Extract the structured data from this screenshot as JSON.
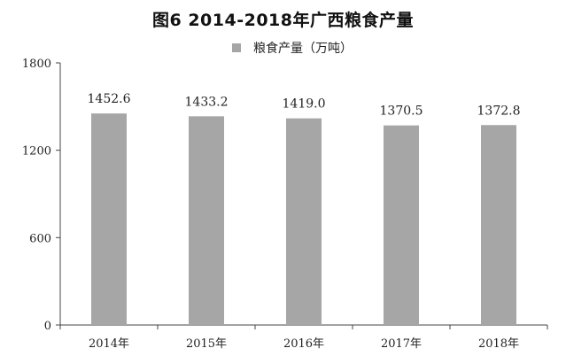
{
  "title": "图6  2014-2018年广西粮食产量",
  "colors": {
    "bar": "#a6a6a6",
    "axis": "#444444",
    "text": "#222222"
  },
  "chart_data": {
    "type": "bar",
    "title": "图6  2014-2018年广西粮食产量",
    "categories": [
      "2014年",
      "2015年",
      "2016年",
      "2017年",
      "2018年"
    ],
    "series": [
      {
        "name": "粮食产量（万吨）",
        "values": [
          1452.6,
          1433.2,
          1419.0,
          1370.5,
          1372.8
        ]
      }
    ],
    "data_labels": [
      "1452.6",
      "1433.2",
      "1419.0",
      "1370.5",
      "1372.8"
    ],
    "ylim": [
      0,
      1800
    ],
    "yticks": [
      0,
      600,
      1200,
      1800
    ],
    "ytick_labels": [
      "0",
      "600",
      "1200",
      "1800"
    ],
    "xlabel": "",
    "ylabel": "",
    "grid": false,
    "legend_position": "top"
  }
}
